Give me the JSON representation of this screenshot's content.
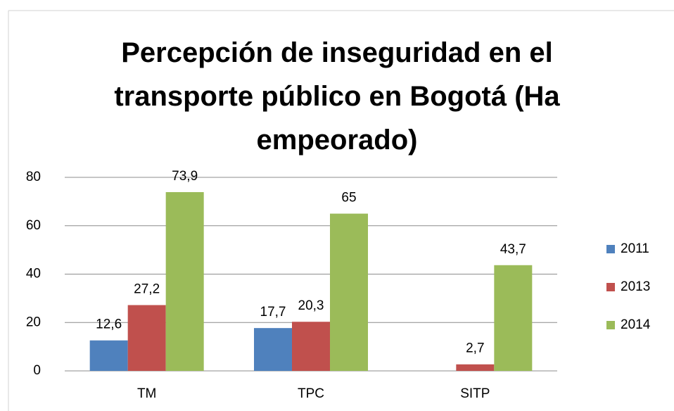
{
  "chart_data": {
    "type": "bar",
    "title": "Percepción de inseguridad en el transporte público en Bogotá (Ha empeorado)",
    "categories": [
      "TM",
      "TPC",
      "SITP"
    ],
    "series": [
      {
        "name": "2011",
        "color": "#4f81bd",
        "values": [
          12.6,
          17.7,
          null
        ],
        "value_labels": [
          "12,6",
          "17,7",
          null
        ]
      },
      {
        "name": "2013",
        "color": "#c0504d",
        "values": [
          27.2,
          20.3,
          2.7
        ],
        "value_labels": [
          "27,2",
          "20,3",
          "2,7"
        ]
      },
      {
        "name": "2014",
        "color": "#9bbb59",
        "values": [
          73.9,
          65,
          43.7
        ],
        "value_labels": [
          "73,9",
          "65",
          "43,7"
        ]
      }
    ],
    "ylim": [
      0,
      80
    ],
    "yticks": [
      0,
      20,
      40,
      60,
      80
    ],
    "grid": true,
    "legend": "right"
  }
}
